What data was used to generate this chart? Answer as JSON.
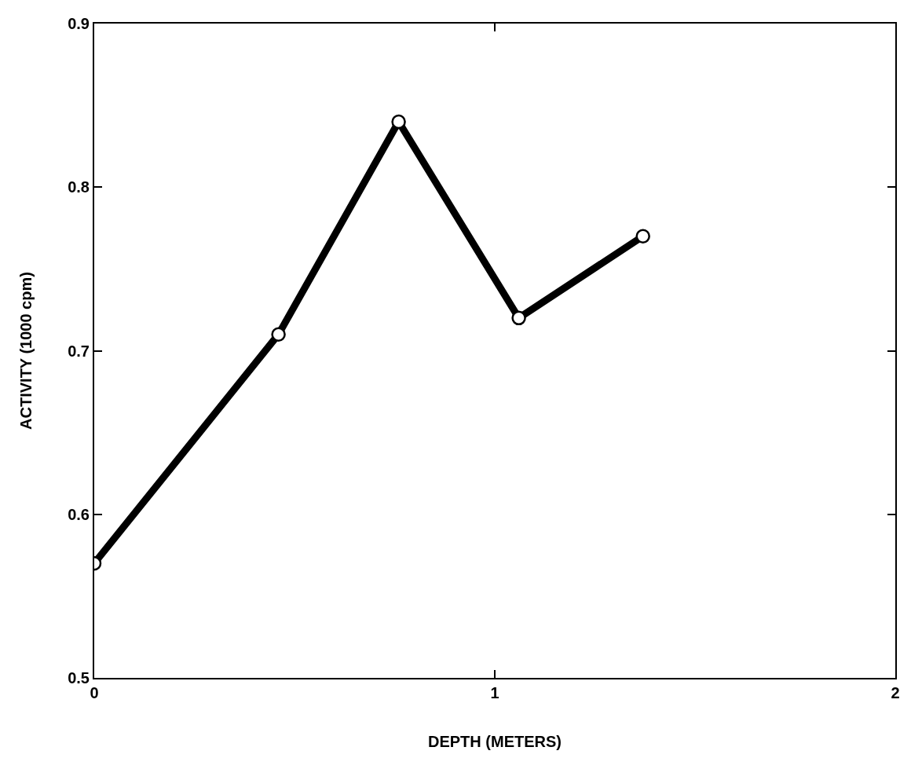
{
  "chart_data": {
    "type": "line",
    "xlabel": "DEPTH (METERS)",
    "ylabel": "ACTIVITY (1000 cpm)",
    "x": [
      0,
      0.46,
      0.76,
      1.06,
      1.37
    ],
    "series": [
      {
        "color": "#000000",
        "values": [
          0.57,
          0.71,
          0.84,
          0.72,
          0.77
        ]
      }
    ],
    "xlim": [
      0,
      2
    ],
    "xticks": [
      0,
      1,
      2
    ],
    "ylim": [
      0.5,
      0.9
    ],
    "yticks": [
      0.5,
      0.6,
      0.7,
      0.8,
      0.9
    ],
    "marker": "circle",
    "line_style": "solid"
  }
}
